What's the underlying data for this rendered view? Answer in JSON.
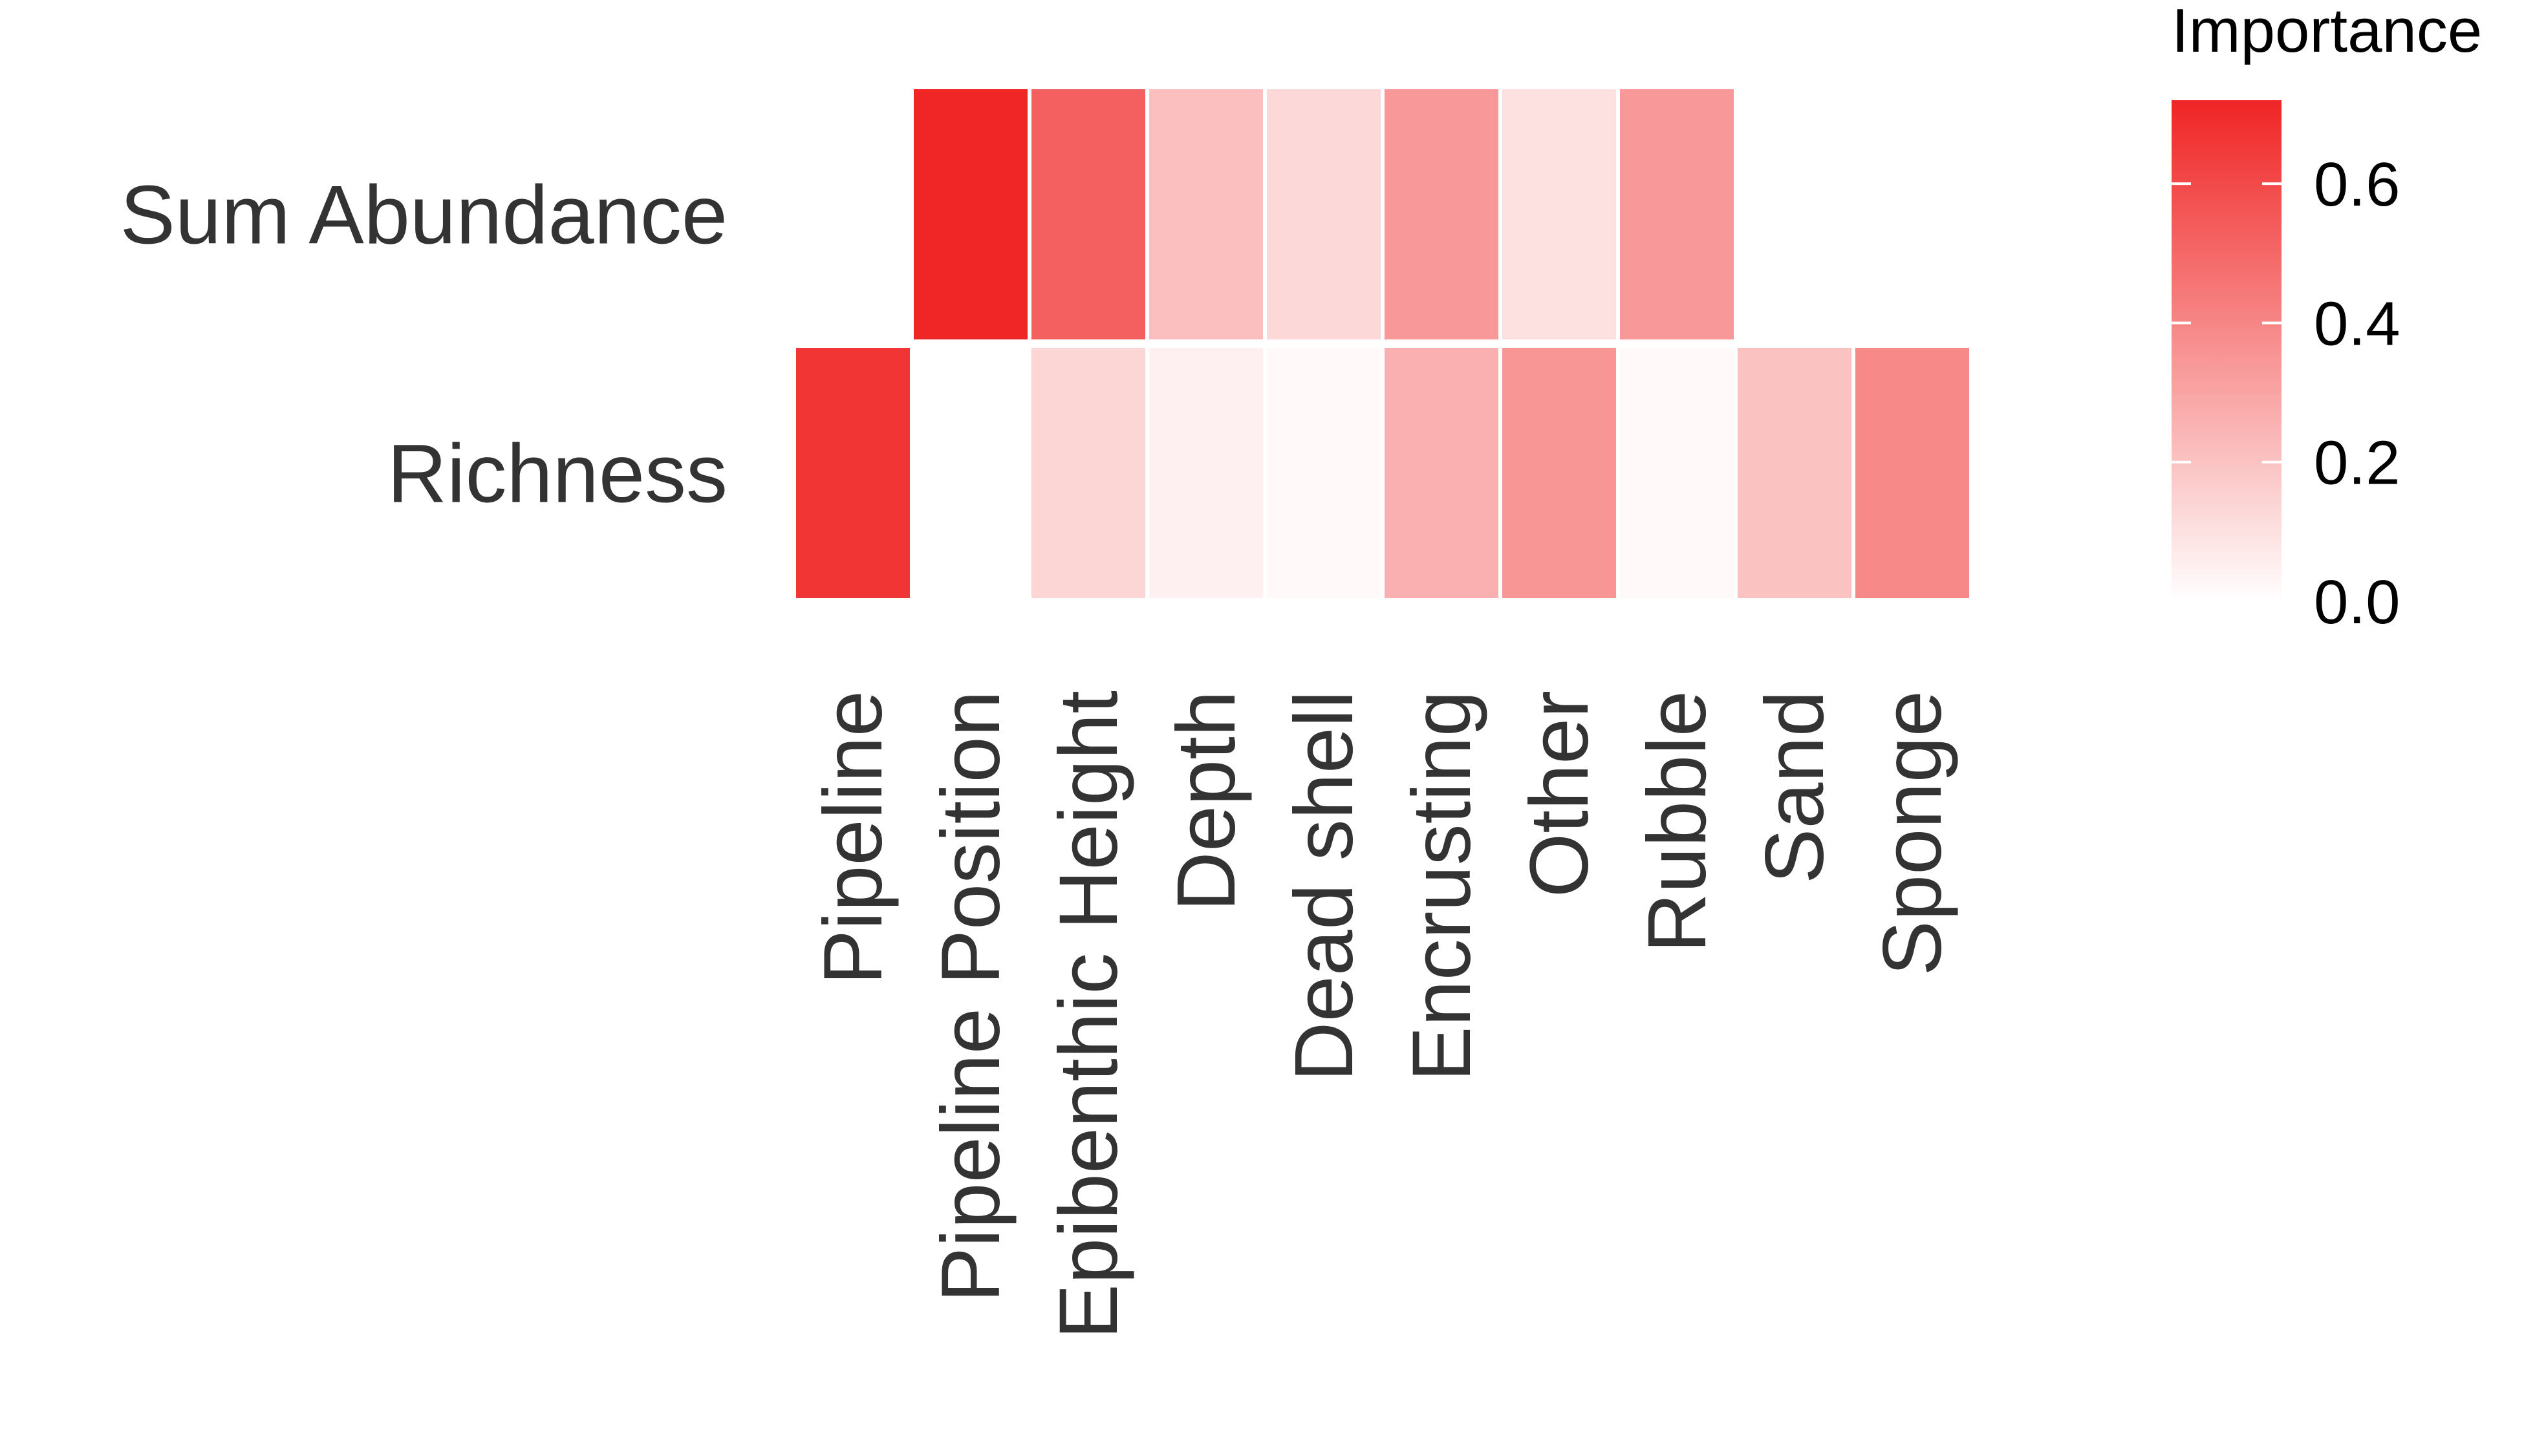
{
  "chart_data": {
    "type": "heatmap",
    "title": "",
    "xlabel": "",
    "ylabel": "",
    "x_categories": [
      "Pipeline",
      "Pipeline Position",
      "Epibenthic Height",
      "Depth",
      "Dead shell",
      "Encrusting",
      "Other",
      "Rubble",
      "Sand",
      "Sponge"
    ],
    "y_categories": [
      "Sum Abundance",
      "Richness"
    ],
    "values": [
      [
        0.0,
        0.73,
        0.53,
        0.21,
        0.13,
        0.34,
        0.1,
        0.34,
        null,
        null
      ],
      [
        0.67,
        null,
        0.14,
        0.05,
        0.02,
        0.26,
        0.35,
        0.02,
        0.2,
        0.39
      ]
    ],
    "legend": {
      "title": "Importance",
      "ticks": [
        "0.0",
        "0.2",
        "0.4",
        "0.6"
      ],
      "range": [
        0,
        0.72
      ],
      "low_color": "#ffffff",
      "high_color": "#f02525",
      "placement": "right"
    }
  }
}
